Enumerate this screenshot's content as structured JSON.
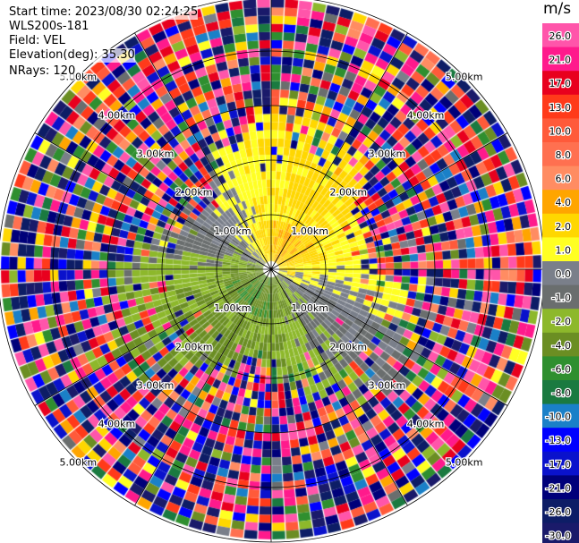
{
  "header": {
    "start_time": "Start time: 2023/08/30 02:24:25",
    "instrument": "WLS200s-181",
    "field": "Field: VEL",
    "elevation": "Elevation(deg): 35.30",
    "nrays": "NRays: 120"
  },
  "chart_data": {
    "type": "heatmap",
    "subtype": "ppi-polar",
    "field": "VEL",
    "units": "m/s",
    "n_rays": 120,
    "elevation_deg": 35.3,
    "range_rings_km": [
      "1.00km",
      "2.00km",
      "3.00km",
      "4.00km",
      "5.00km"
    ],
    "spokes_deg": [
      0,
      30,
      60,
      90,
      120,
      150,
      180,
      210,
      240,
      270,
      300,
      330
    ],
    "colorbar": {
      "unit_label": "m/s",
      "ticks": [
        "26.0",
        "21.0",
        "17.0",
        "13.0",
        "10.0",
        "8.0",
        "6.0",
        "4.0",
        "2.0",
        "1.0",
        "0.0",
        "-1.0",
        "-2.0",
        "-4.0",
        "-6.0",
        "-8.0",
        "-10.0",
        "-13.0",
        "-17.0",
        "-21.0",
        "-26.0",
        "-30.0"
      ],
      "bands": [
        {
          "min": 26,
          "max": 30,
          "color": "#ff55aa"
        },
        {
          "min": 21,
          "max": 26,
          "color": "#ff1a8c"
        },
        {
          "min": 17,
          "max": 21,
          "color": "#e8001e"
        },
        {
          "min": 13,
          "max": 17,
          "color": "#ff3a1a"
        },
        {
          "min": 10,
          "max": 13,
          "color": "#ff5a3a"
        },
        {
          "min": 8,
          "max": 10,
          "color": "#ff7050"
        },
        {
          "min": 6,
          "max": 8,
          "color": "#ff8c62"
        },
        {
          "min": 4,
          "max": 6,
          "color": "#ffa500"
        },
        {
          "min": 2,
          "max": 4,
          "color": "#ffd700"
        },
        {
          "min": 1,
          "max": 2,
          "color": "#ffff22"
        },
        {
          "min": 0,
          "max": 1,
          "color": "#7a7f8a"
        },
        {
          "min": -1,
          "max": 0,
          "color": "#6a6e6e"
        },
        {
          "min": -2,
          "max": -1,
          "color": "#8db82b"
        },
        {
          "min": -4,
          "max": -2,
          "color": "#6b8e23"
        },
        {
          "min": -6,
          "max": -4,
          "color": "#2f8f2f"
        },
        {
          "min": -8,
          "max": -6,
          "color": "#1a7a40"
        },
        {
          "min": -10,
          "max": -8,
          "color": "#1a80c8"
        },
        {
          "min": -13,
          "max": -10,
          "color": "#0000ff"
        },
        {
          "min": -17,
          "max": -13,
          "color": "#0a12cc"
        },
        {
          "min": -21,
          "max": -17,
          "color": "#00007a"
        },
        {
          "min": -26,
          "max": -21,
          "color": "#0d1d66"
        },
        {
          "min": -30,
          "max": -26,
          "color": "#1a1a6a"
        }
      ]
    }
  }
}
